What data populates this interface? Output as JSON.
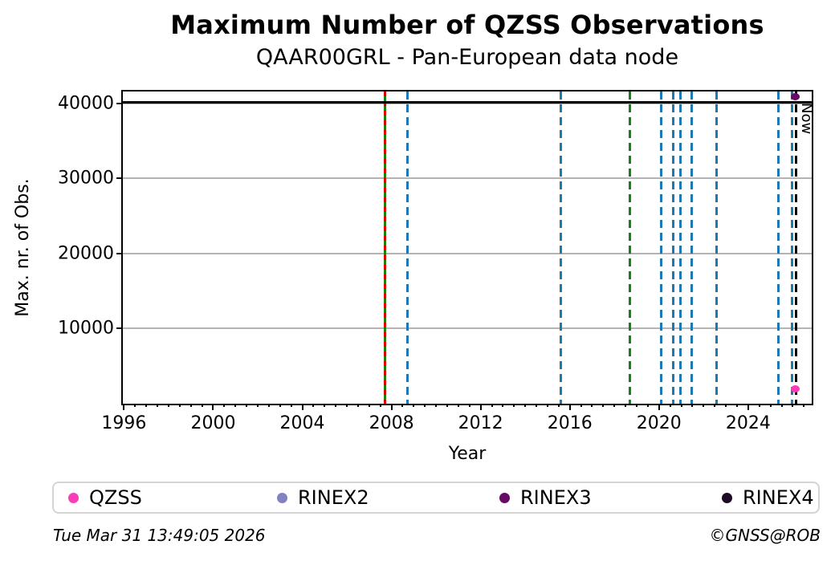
{
  "chart_data": {
    "type": "scatter",
    "title": "Maximum Number of QZSS Observations",
    "subtitle": "QAAR00GRL - Pan-European data node",
    "xlabel": "Year",
    "ylabel": "Max. nr. of Obs.",
    "xlim": [
      1995.95,
      2026.85
    ],
    "ylim": [
      0,
      41600
    ],
    "xticks": [
      1996,
      2000,
      2004,
      2008,
      2012,
      2016,
      2020,
      2024
    ],
    "xtick_minor_step": 0.5,
    "yticks": [
      10000,
      20000,
      30000,
      40000
    ],
    "grid": {
      "horizontal": true,
      "vertical": false,
      "color": "#b4b4b4"
    },
    "hlines": [
      {
        "y": 40200,
        "color": "#000000",
        "style": "solid"
      }
    ],
    "vlines": [
      {
        "x": 2007.7,
        "color": "#178017",
        "style": "solid"
      },
      {
        "x": 2007.7,
        "color": "#dd0000",
        "style": "dashed-short"
      },
      {
        "x": 2008.7,
        "color": "#1f77b4",
        "style": "dashed"
      },
      {
        "x": 2015.6,
        "color": "#1f77b4",
        "style": "dashed"
      },
      {
        "x": 2018.7,
        "color": "#178017",
        "style": "dashed"
      },
      {
        "x": 2020.1,
        "color": "#1f77b4",
        "style": "dashed"
      },
      {
        "x": 2020.65,
        "color": "#1f77b4",
        "style": "dashed"
      },
      {
        "x": 2020.95,
        "color": "#1f77b4",
        "style": "dashed"
      },
      {
        "x": 2021.45,
        "color": "#1f77b4",
        "style": "dashed"
      },
      {
        "x": 2022.6,
        "color": "#1f77b4",
        "style": "dashed"
      },
      {
        "x": 2025.35,
        "color": "#1f77b4",
        "style": "dashed"
      },
      {
        "x": 2025.95,
        "color": "#1f77b4",
        "style": "dashed"
      },
      {
        "x": 2026.15,
        "color": "#000000",
        "style": "dashed",
        "label": "Now"
      }
    ],
    "points": [
      {
        "series": "RINEX3",
        "x": 2026.1,
        "y": 40900,
        "color": "#670b67"
      },
      {
        "series": "QZSS",
        "x": 2026.1,
        "y": 2000,
        "color": "#fa3cb8"
      }
    ],
    "legend": {
      "position": "bottom",
      "entries": [
        {
          "label": "QZSS",
          "color": "#fa3cb8"
        },
        {
          "label": "RINEX2",
          "color": "#8181c6"
        },
        {
          "label": "RINEX3",
          "color": "#670b67"
        },
        {
          "label": "RINEX4",
          "color": "#1e0a24"
        }
      ]
    }
  },
  "footer": {
    "timestamp": "Tue Mar 31 13:49:05 2026",
    "credit": "©GNSS@ROB"
  }
}
